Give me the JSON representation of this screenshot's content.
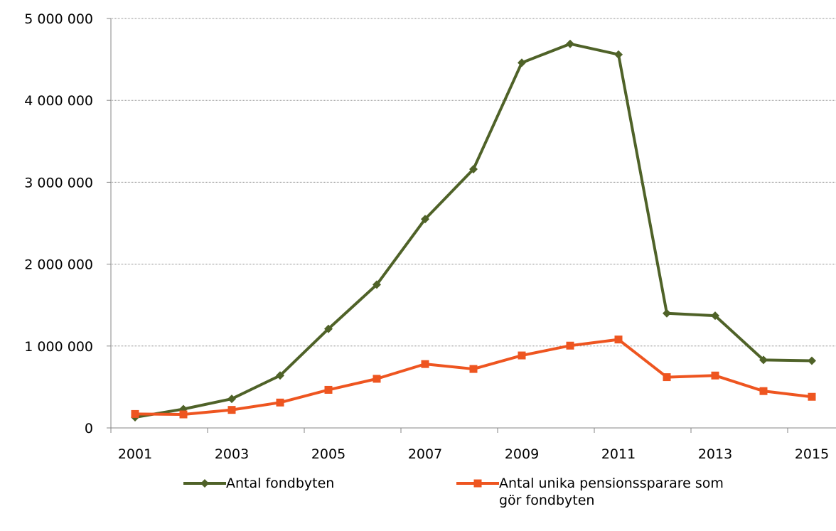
{
  "chart_data": {
    "type": "line",
    "categories": [
      "2001",
      null,
      "2003",
      null,
      "2005",
      null,
      "2007",
      null,
      "2009",
      null,
      "2011",
      null,
      "2013",
      null,
      "2015"
    ],
    "series": [
      {
        "name": "Antal fondbyten",
        "color": "#4f6228",
        "marker": "diamond",
        "values": [
          130000,
          230000,
          355000,
          640000,
          1210000,
          1750000,
          2550000,
          3160000,
          4460000,
          4690000,
          4560000,
          1400000,
          1370000,
          830000,
          820000
        ]
      },
      {
        "name": "Antal unika pensionssparare som gör fondbyten",
        "color": "#ee5520",
        "marker": "square",
        "values": [
          170000,
          165000,
          220000,
          310000,
          465000,
          600000,
          780000,
          720000,
          885000,
          1005000,
          1080000,
          620000,
          640000,
          450000,
          380000
        ]
      }
    ],
    "ylim": [
      0,
      5000000
    ],
    "yticks": [
      0,
      {
        "value": 1000000,
        "label": "1 000 000"
      },
      {
        "value": 2000000,
        "label": "2 000 000"
      },
      {
        "value": 3000000,
        "label": "3 000 000"
      },
      {
        "value": 4000000,
        "label": "4 000 000"
      },
      {
        "value": 5000000,
        "label": "5 000 000"
      }
    ],
    "grid": true,
    "legend": "bottom"
  }
}
